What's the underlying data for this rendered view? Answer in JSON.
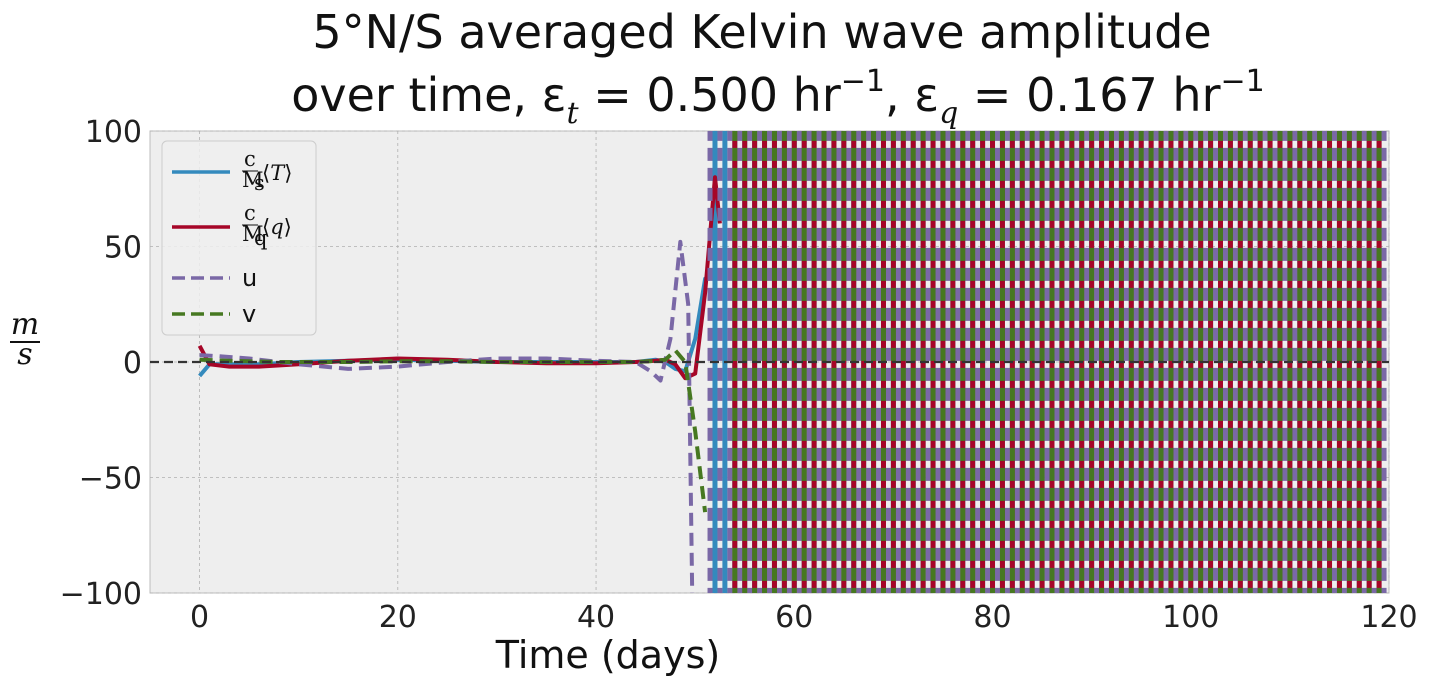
{
  "chart_data": {
    "type": "line",
    "title_line1": "5°N/S averaged Kelvin wave amplitude",
    "title_line2_prefix": "over time, ε",
    "title_sub_t": "t",
    "title_eq1": " = 0.500 hr",
    "title_sup1": "−1",
    "title_sep": ",  ε",
    "title_sub_q": "q",
    "title_eq2": " = 0.167 hr",
    "title_sup2": "−1",
    "xlabel": "Time (days)",
    "ylabel_num": "m",
    "ylabel_den": "s",
    "xlim": [
      -5,
      120
    ],
    "ylim": [
      -100,
      100
    ],
    "xticks": [
      0,
      20,
      40,
      60,
      80,
      100,
      120
    ],
    "yticks": [
      -100,
      -50,
      0,
      50,
      100
    ],
    "xtick_labels": [
      "0",
      "20",
      "40",
      "60",
      "80",
      "100",
      "120"
    ],
    "ytick_labels": [
      "−100",
      "−50",
      "0",
      "50",
      "100"
    ],
    "grid": true,
    "zero_line": true,
    "legend_position": "top-left",
    "legend": [
      {
        "label_c": "c",
        "label_m": "M",
        "label_sub": "s",
        "label_var": "T",
        "color": "#348ABD",
        "dash": "solid"
      },
      {
        "label_c": "c",
        "label_m": "M",
        "label_sub": "q",
        "label_var": "q",
        "color": "#A60628",
        "dash": "solid"
      },
      {
        "label": "u",
        "color": "#7A68A6",
        "dash": "dashed"
      },
      {
        "label": "v",
        "color": "#467821",
        "dash": "dashed"
      }
    ],
    "series": [
      {
        "key": "T",
        "color": "#348ABD",
        "dash": "solid",
        "x": [
          0,
          1,
          3,
          6,
          10,
          15,
          20,
          25,
          30,
          35,
          40,
          44,
          46,
          47,
          48,
          49,
          50,
          51,
          51.5
        ],
        "y": [
          -6,
          -1,
          -1,
          -1,
          0,
          0.5,
          1,
          0.5,
          0,
          0,
          0,
          0,
          1,
          0,
          -3,
          -4,
          10,
          36,
          36
        ],
        "oscillation": {
          "start": 52,
          "end": 119.5,
          "period": 2.0,
          "phase": 0.0
        }
      },
      {
        "key": "q",
        "color": "#A60628",
        "dash": "solid",
        "x": [
          0,
          1,
          3,
          6,
          10,
          15,
          20,
          25,
          30,
          35,
          40,
          44,
          46,
          47,
          48,
          49,
          50,
          51,
          52,
          52.5
        ],
        "y": [
          7,
          -1,
          -2,
          -2,
          -1,
          0.5,
          1.5,
          1,
          0,
          -0.5,
          -0.5,
          0,
          0.5,
          1,
          -1,
          -7,
          -5,
          30,
          80,
          60
        ],
        "oscillation": {
          "start": 53,
          "end": 119.5,
          "period": 2.0,
          "phase": 0.5
        }
      },
      {
        "key": "u",
        "color": "#7A68A6",
        "dash": "dashed",
        "x": [
          0,
          2,
          5,
          10,
          15,
          20,
          25,
          30,
          35,
          40,
          44,
          45.5,
          46.5,
          47.5,
          48.5,
          49.3,
          49.7
        ],
        "y": [
          3,
          2.5,
          1.5,
          -1,
          -3,
          -2,
          0,
          1.5,
          1.5,
          0.5,
          0,
          -4,
          -8,
          10,
          52,
          25,
          -100
        ],
        "oscillation": {
          "start": 51,
          "end": 119.5,
          "period": 2.0,
          "phase": 0.25
        }
      },
      {
        "key": "v",
        "color": "#467821",
        "dash": "dashed",
        "x": [
          0,
          3,
          8,
          15,
          20,
          25,
          30,
          35,
          40,
          44,
          46,
          47,
          48,
          49,
          50,
          51
        ],
        "y": [
          1,
          0.5,
          0,
          0,
          0.3,
          0.3,
          0,
          0,
          0,
          0,
          0.5,
          1,
          5,
          0,
          -30,
          -65
        ],
        "oscillation": {
          "start": 52.5,
          "end": 119,
          "period": 2.0,
          "phase": 0.75
        }
      }
    ]
  }
}
